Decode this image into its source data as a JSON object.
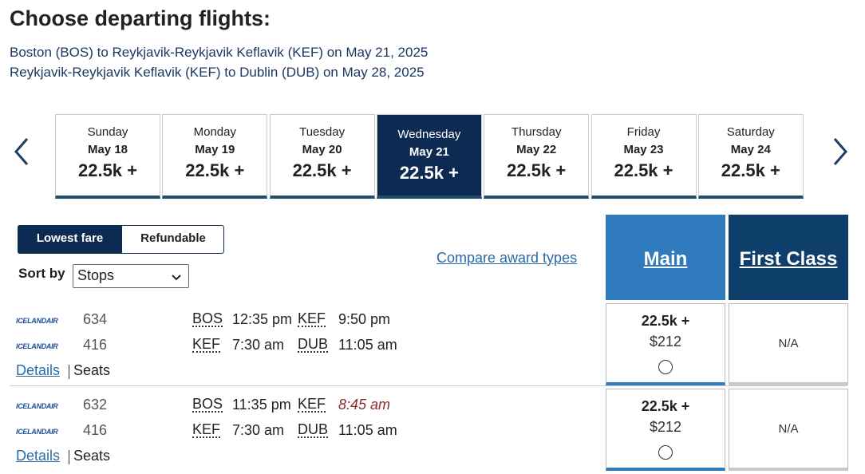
{
  "header": {
    "title": "Choose departing flights:",
    "routes": [
      "Boston (BOS) to Reykjavik-Reykjavik Keflavik (KEF) on May 21, 2025",
      "Reykjavik-Reykjavik Keflavik (KEF) to Dublin (DUB) on May 28, 2025"
    ]
  },
  "dates": [
    {
      "day": "Sunday",
      "date": "May 18",
      "price": "22.5k +"
    },
    {
      "day": "Monday",
      "date": "May 19",
      "price": "22.5k +"
    },
    {
      "day": "Tuesday",
      "date": "May 20",
      "price": "22.5k +"
    },
    {
      "day": "Wednesday",
      "date": "May 21",
      "price": "22.5k +",
      "selected": true
    },
    {
      "day": "Thursday",
      "date": "May 22",
      "price": "22.5k +"
    },
    {
      "day": "Friday",
      "date": "May 23",
      "price": "22.5k +"
    },
    {
      "day": "Saturday",
      "date": "May 24",
      "price": "22.5k +"
    }
  ],
  "filters": {
    "tabs": [
      "Lowest fare",
      "Refundable"
    ],
    "sort_label": "Sort by",
    "sort_value": "Stops",
    "compare": "Compare award types"
  },
  "columns": [
    "Main",
    "First Class"
  ],
  "flights": [
    {
      "segments": [
        {
          "airline": "ICELANDAIR",
          "number": "634",
          "from": "BOS",
          "dep": "12:35 pm",
          "to": "KEF",
          "arr": "9:50 pm"
        },
        {
          "airline": "ICELANDAIR",
          "number": "416",
          "from": "KEF",
          "dep": "7:30 am",
          "to": "DUB",
          "arr": "11:05 am"
        }
      ],
      "details": "Details",
      "seats": "Seats",
      "main": {
        "points": "22.5k +",
        "price": "$212"
      },
      "first": "N/A"
    },
    {
      "segments": [
        {
          "airline": "ICELANDAIR",
          "number": "632",
          "from": "BOS",
          "dep": "11:35 pm",
          "to": "KEF",
          "arr": "8:45 am",
          "arr_next_day": true
        },
        {
          "airline": "ICELANDAIR",
          "number": "416",
          "from": "KEF",
          "dep": "7:30 am",
          "to": "DUB",
          "arr": "11:05 am"
        }
      ],
      "details": "Details",
      "seats": "Seats",
      "main": {
        "points": "22.5k +",
        "price": "$212"
      },
      "first": "N/A"
    }
  ]
}
